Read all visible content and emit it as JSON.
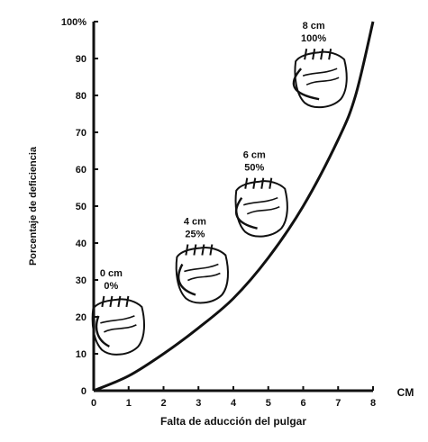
{
  "chart_data": {
    "type": "line",
    "xlabel": "Falta de aducción del pulgar",
    "ylabel": "Porcentaje de deficiencia",
    "x_unit": "CM",
    "xlim": [
      0,
      8
    ],
    "ylim": [
      0,
      100
    ],
    "x_ticks": [
      "0",
      "1",
      "2",
      "3",
      "4",
      "5",
      "6",
      "7",
      "8"
    ],
    "y_ticks": [
      "0",
      "10",
      "20",
      "30",
      "40",
      "50",
      "60",
      "70",
      "80",
      "90",
      "100%"
    ],
    "series": [
      {
        "x": [
          0,
          1,
          2,
          3,
          4,
          5,
          6,
          7,
          7.5,
          8
        ],
        "y": [
          0,
          4,
          10,
          17,
          25,
          36,
          50,
          68,
          80,
          100
        ]
      }
    ],
    "annotations": [
      {
        "line1": "0 cm",
        "line2": "0%",
        "x": 0.5,
        "y": 31
      },
      {
        "line1": "4 cm",
        "line2": "25%",
        "x": 2.9,
        "y": 45
      },
      {
        "line1": "6 cm",
        "line2": "50%",
        "x": 4.6,
        "y": 63
      },
      {
        "line1": "8 cm",
        "line2": "100%",
        "x": 6.3,
        "y": 98
      }
    ],
    "grid": false,
    "legend": "none"
  }
}
